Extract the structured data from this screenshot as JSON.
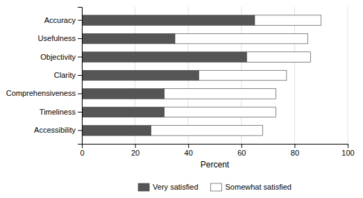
{
  "chart_data": {
    "type": "bar",
    "orientation": "horizontal",
    "stacked": true,
    "categories": [
      "Accuracy",
      "Usefulness",
      "Objectivity",
      "Clarity",
      "Comprehensiveness",
      "Timeliness",
      "Accessibility"
    ],
    "series": [
      {
        "name": "Very satisfied",
        "color": "#555555",
        "values": [
          65,
          35,
          62,
          44,
          31,
          31,
          26
        ]
      },
      {
        "name": "Somewhat satisfied",
        "color": "#ffffff",
        "values": [
          25,
          50,
          24,
          33,
          42,
          42,
          42
        ]
      }
    ],
    "xlabel": "Percent",
    "xlim": [
      0,
      100
    ],
    "xticks": [
      0,
      20,
      40,
      60,
      80,
      100
    ],
    "grid": true,
    "legend": "bottom"
  }
}
